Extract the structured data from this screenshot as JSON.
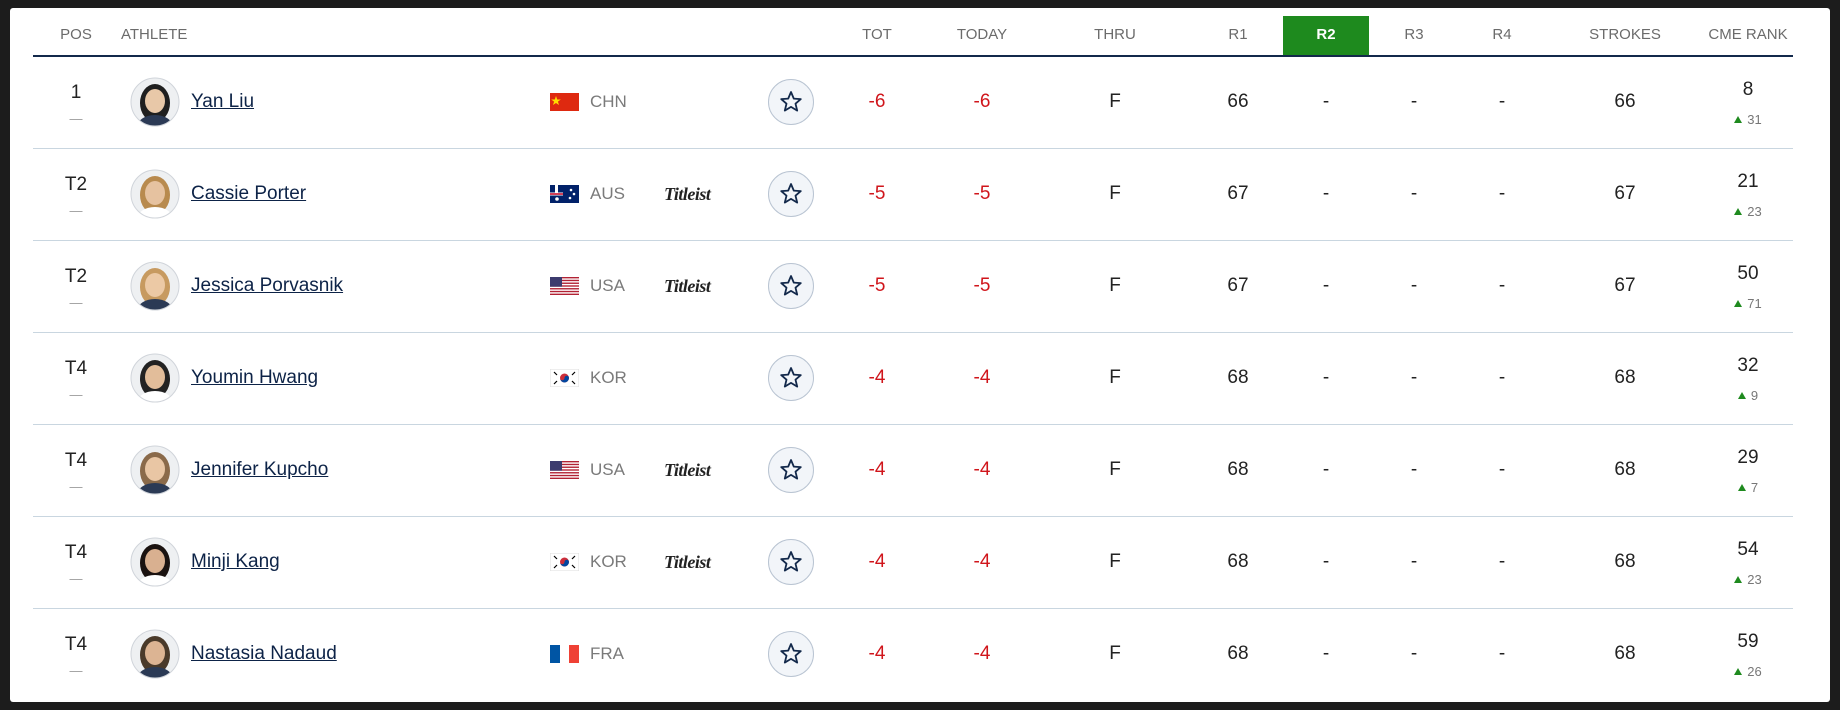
{
  "header": {
    "columns": [
      "POS",
      "ATHLETE",
      "TOT",
      "TODAY",
      "THRU",
      "R1",
      "R2",
      "R3",
      "R4",
      "STROKES",
      "CME RANK"
    ]
  },
  "rows": [
    {
      "pos": "1",
      "move": "—",
      "athlete": "Yan Liu",
      "country": "CHN",
      "tot": -6,
      "today": -6,
      "thru": "F",
      "r1": 66,
      "r2": "-",
      "r3": "-",
      "r4": "-",
      "strokes": 66,
      "cme_rank": 8,
      "cme_change": 31
    },
    {
      "pos": "T2",
      "move": "—",
      "athlete": "Cassie Porter",
      "country": "AUS",
      "sponsor": "Titleist",
      "tot": -5,
      "today": -5,
      "thru": "F",
      "r1": 67,
      "r2": "-",
      "r3": "-",
      "r4": "-",
      "strokes": 67,
      "cme_rank": 21,
      "cme_change": 23
    },
    {
      "pos": "T2",
      "move": "—",
      "athlete": "Jessica Porvasnik",
      "country": "USA",
      "sponsor": "Titleist",
      "tot": -5,
      "today": -5,
      "thru": "F",
      "r1": 67,
      "r2": "-",
      "r3": "-",
      "r4": "-",
      "strokes": 67,
      "cme_rank": 50,
      "cme_change": 71
    },
    {
      "pos": "T4",
      "move": "—",
      "athlete": "Youmin Hwang",
      "country": "KOR",
      "tot": -4,
      "today": -4,
      "thru": "F",
      "r1": 68,
      "r2": "-",
      "r3": "-",
      "r4": "-",
      "strokes": 68,
      "cme_rank": 32,
      "cme_change": 9
    },
    {
      "pos": "T4",
      "move": "—",
      "athlete": "Jennifer Kupcho",
      "country": "USA",
      "sponsor": "Titleist",
      "tot": -4,
      "today": -4,
      "thru": "F",
      "r1": 68,
      "r2": "-",
      "r3": "-",
      "r4": "-",
      "strokes": 68,
      "cme_rank": 29,
      "cme_change": 7
    },
    {
      "pos": "T4",
      "move": "—",
      "athlete": "Minji Kang",
      "country": "KOR",
      "sponsor": "Titleist",
      "tot": -4,
      "today": -4,
      "thru": "F",
      "r1": 68,
      "r2": "-",
      "r3": "-",
      "r4": "-",
      "strokes": 68,
      "cme_rank": 54,
      "cme_change": 23
    },
    {
      "pos": "T4",
      "move": "—",
      "athlete": "Nastasia Nadaud",
      "country": "FRA",
      "tot": -4,
      "today": -4,
      "thru": "F",
      "r1": 68,
      "r2": "-",
      "r3": "-",
      "r4": "-",
      "strokes": 68,
      "cme_rank": 59,
      "cme_change": 26
    }
  ]
}
